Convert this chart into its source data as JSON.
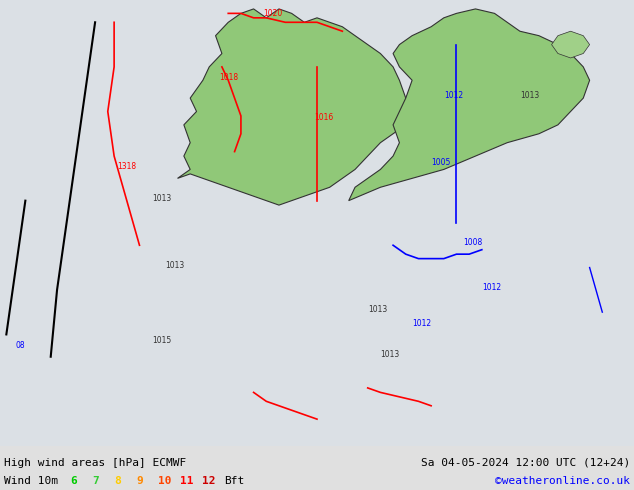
{
  "title_left": "High wind areas [hPa] ECMWF",
  "title_right": "Sa 04-05-2024 12:00 UTC (12+24)",
  "subtitle_left": "Wind 10m",
  "subtitle_right": "©weatheronline.co.uk",
  "bft_labels": [
    "6",
    "7",
    "8",
    "9",
    "10",
    "11",
    "12",
    "Bft"
  ],
  "bft_colors": [
    "#00cc00",
    "#00cc00",
    "#ffcc00",
    "#ff8800",
    "#ff4400",
    "#ff0000",
    "#cc0000",
    "#000000"
  ],
  "bg_color": "#e8e8e8",
  "map_bg": "#f0f0f0",
  "bottom_bar_color": "#d0d0d0",
  "figsize": [
    6.34,
    4.9
  ],
  "dpi": 100
}
